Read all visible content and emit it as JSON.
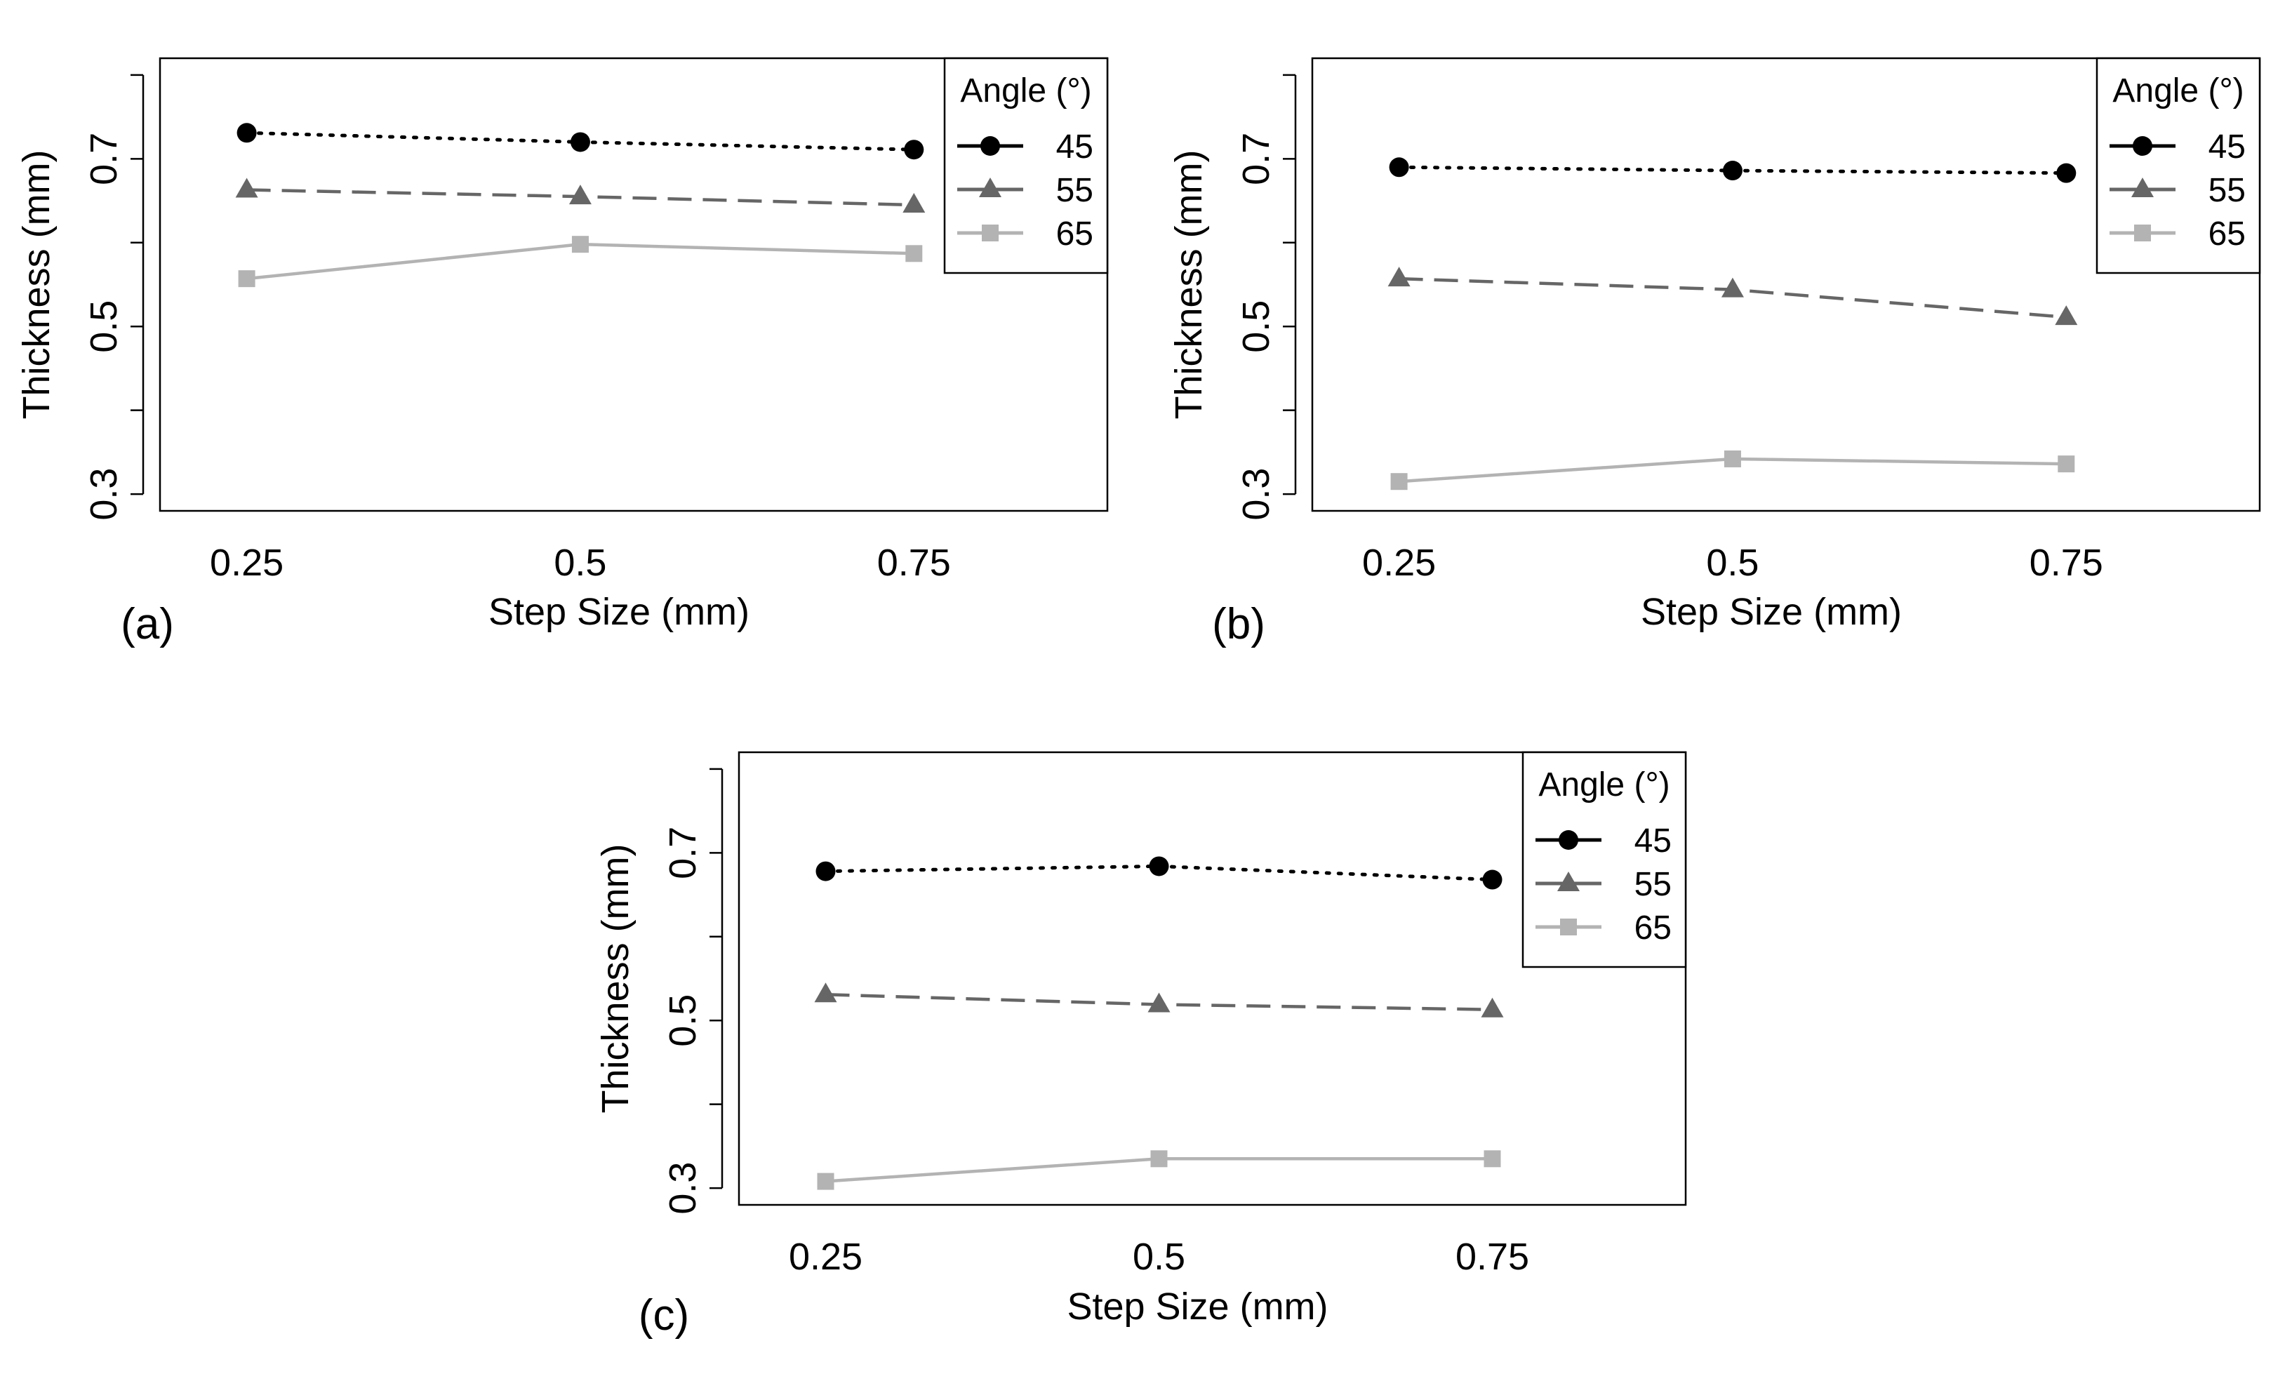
{
  "chart_data": [
    {
      "type": "line",
      "panel_label": "(a)",
      "xlabel": "Step Size (mm)",
      "ylabel": "Thickness (mm)",
      "x": [
        0.25,
        0.5,
        0.75
      ],
      "xticks": [
        "0.25",
        "0.5",
        "0.75"
      ],
      "yticks": [
        "0.3",
        "0.5",
        "0.7"
      ],
      "xlim": [
        0.185,
        0.895
      ],
      "ylim": [
        0.28,
        0.82
      ],
      "legend": {
        "title": "Angle (°)",
        "position": "top-right"
      },
      "series": [
        {
          "name": "45",
          "values": [
            0.731,
            0.72,
            0.711
          ],
          "color": "#000000",
          "marker": "circle",
          "dash": "dotted"
        },
        {
          "name": "55",
          "values": [
            0.663,
            0.655,
            0.645
          ],
          "color": "#666666",
          "marker": "triangle",
          "dash": "dashed"
        },
        {
          "name": "65",
          "values": [
            0.557,
            0.598,
            0.587
          ],
          "color": "#b3b3b3",
          "marker": "square",
          "dash": "solid"
        }
      ]
    },
    {
      "type": "line",
      "panel_label": "(b)",
      "xlabel": "Step Size (mm)",
      "ylabel": "Thickness (mm)",
      "x": [
        0.25,
        0.5,
        0.75
      ],
      "xticks": [
        "0.25",
        "0.5",
        "0.75"
      ],
      "yticks": [
        "0.3",
        "0.5",
        "0.7"
      ],
      "xlim": [
        0.185,
        0.895
      ],
      "ylim": [
        0.28,
        0.82
      ],
      "legend": {
        "title": "Angle (°)",
        "position": "top-right"
      },
      "series": [
        {
          "name": "45",
          "values": [
            0.69,
            0.686,
            0.683
          ],
          "color": "#000000",
          "marker": "circle",
          "dash": "dotted"
        },
        {
          "name": "55",
          "values": [
            0.557,
            0.544,
            0.511
          ],
          "color": "#666666",
          "marker": "triangle",
          "dash": "dashed"
        },
        {
          "name": "65",
          "values": [
            0.315,
            0.342,
            0.336
          ],
          "color": "#b3b3b3",
          "marker": "square",
          "dash": "solid"
        }
      ]
    },
    {
      "type": "line",
      "panel_label": "(c)",
      "xlabel": "Step Size (mm)",
      "ylabel": "Thickness (mm)",
      "x": [
        0.25,
        0.5,
        0.75
      ],
      "xticks": [
        "0.25",
        "0.5",
        "0.75"
      ],
      "yticks": [
        "0.3",
        "0.5",
        "0.7"
      ],
      "xlim": [
        0.185,
        0.895
      ],
      "ylim": [
        0.28,
        0.82
      ],
      "legend": {
        "title": "Angle (°)",
        "position": "top-right"
      },
      "series": [
        {
          "name": "45",
          "values": [
            0.678,
            0.684,
            0.668
          ],
          "color": "#000000",
          "marker": "circle",
          "dash": "dotted"
        },
        {
          "name": "55",
          "values": [
            0.531,
            0.519,
            0.513
          ],
          "color": "#666666",
          "marker": "triangle",
          "dash": "dashed"
        },
        {
          "name": "65",
          "values": [
            0.308,
            0.335,
            0.335
          ],
          "color": "#b3b3b3",
          "marker": "square",
          "dash": "solid"
        }
      ]
    }
  ]
}
